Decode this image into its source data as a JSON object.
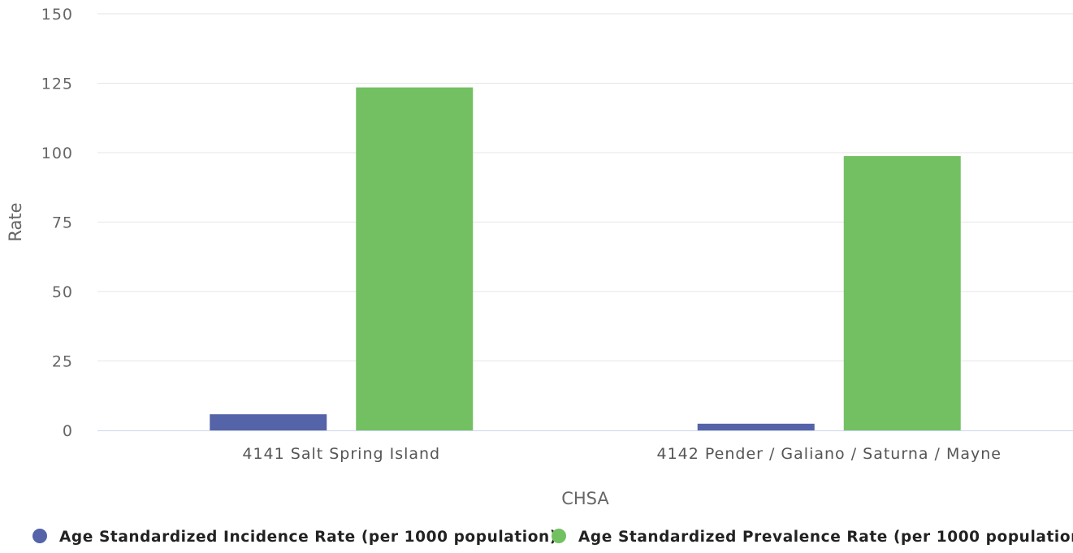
{
  "chart_data": {
    "type": "bar",
    "xlabel": "CHSA",
    "ylabel": "Rate",
    "categories": [
      "4141 Salt Spring Island",
      "4142 Pender / Galiano / Saturna / Mayne"
    ],
    "series": [
      {
        "name": "Age Standardized Incidence Rate (per 1000 population)",
        "color": "#5563a8",
        "values": [
          5.8,
          2.4
        ]
      },
      {
        "name": "Age Standardized Prevalence Rate (per 1000 population)",
        "color": "#73c062",
        "values": [
          123.5,
          98.8
        ]
      }
    ],
    "ylim": [
      0,
      150
    ],
    "yticks": [
      "0",
      "25",
      "50",
      "75",
      "100",
      "125",
      "150"
    ],
    "grid": true,
    "legend": "bottom"
  }
}
